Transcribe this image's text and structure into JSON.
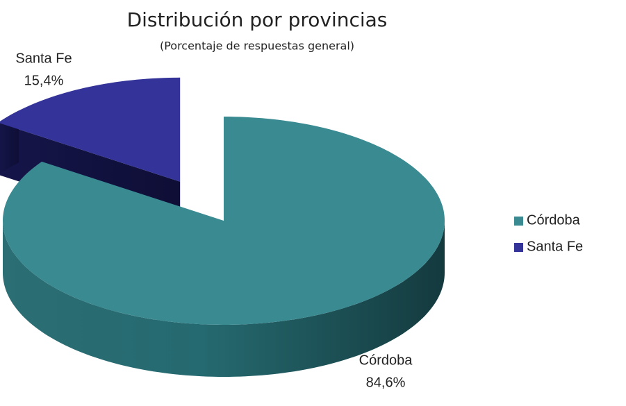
{
  "chart_data": {
    "type": "pie",
    "title": "Distribución por provincias",
    "subtitle": "(Porcentaje de respuestas general)",
    "categories": [
      "Córdoba",
      "Santa Fe"
    ],
    "values": [
      84.6,
      15.4
    ],
    "value_labels": [
      "84,6%",
      "15,4%"
    ],
    "colors": [
      "#3a8a92",
      "#33339a"
    ],
    "legend": "right",
    "exploded": "Santa Fe"
  }
}
